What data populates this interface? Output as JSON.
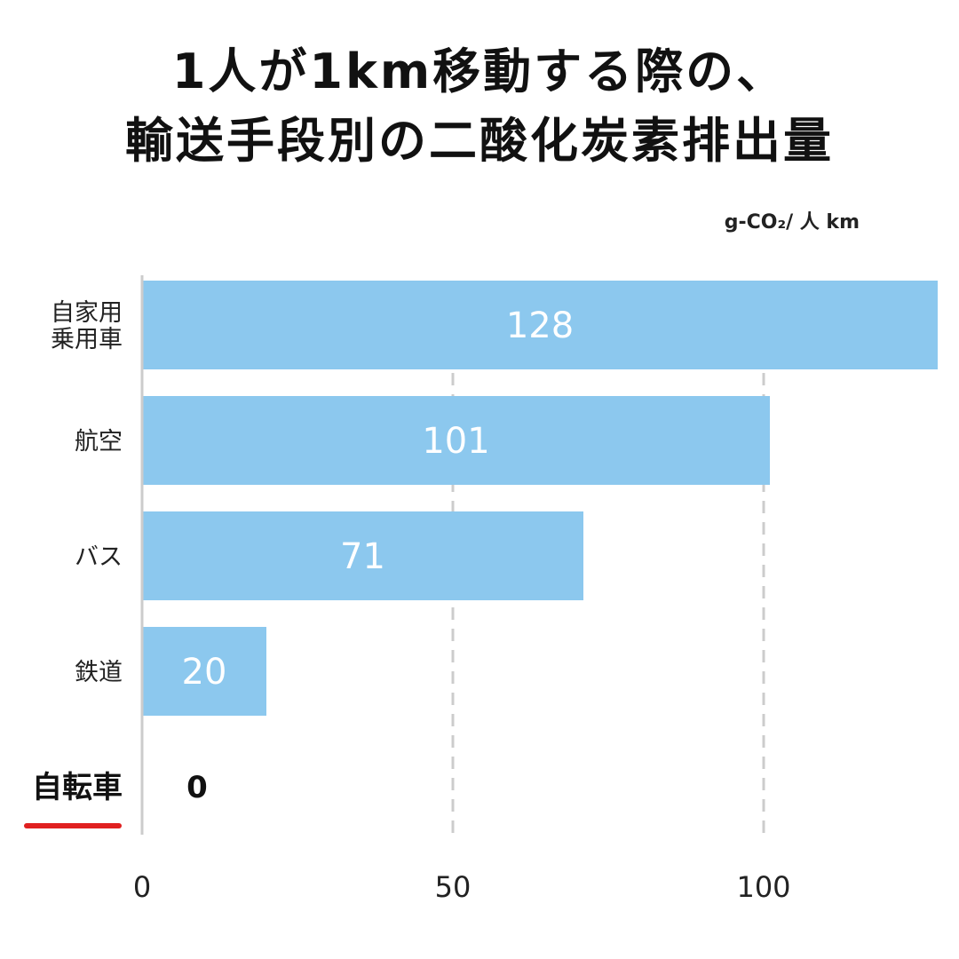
{
  "chart_data": {
    "type": "bar",
    "orientation": "horizontal",
    "title_lines": [
      "1人が1km移動する際の、",
      "輸送手段別の二酸化炭素排出量"
    ],
    "unit": "g-CO₂/ 人 km",
    "categories": [
      {
        "label_lines": [
          "自家用",
          "乗用車"
        ],
        "value": 128,
        "emphasized": false
      },
      {
        "label_lines": [
          "航空"
        ],
        "value": 101,
        "emphasized": false
      },
      {
        "label_lines": [
          "バス"
        ],
        "value": 71,
        "emphasized": false
      },
      {
        "label_lines": [
          "鉄道"
        ],
        "value": 20,
        "emphasized": false
      },
      {
        "label_lines": [
          "自転車"
        ],
        "value": 0,
        "emphasized": true
      }
    ],
    "xlim": [
      0,
      128
    ],
    "xticks": [
      0,
      50,
      100
    ],
    "grid": "dashed vertical at 50 and 100",
    "colors": {
      "bar": "#8cc8ee",
      "bar_label": "#ffffff",
      "grid": "#cccccc",
      "axis": "#cccccc",
      "emphasis_underline": "#e02020",
      "text": "#111111"
    }
  }
}
